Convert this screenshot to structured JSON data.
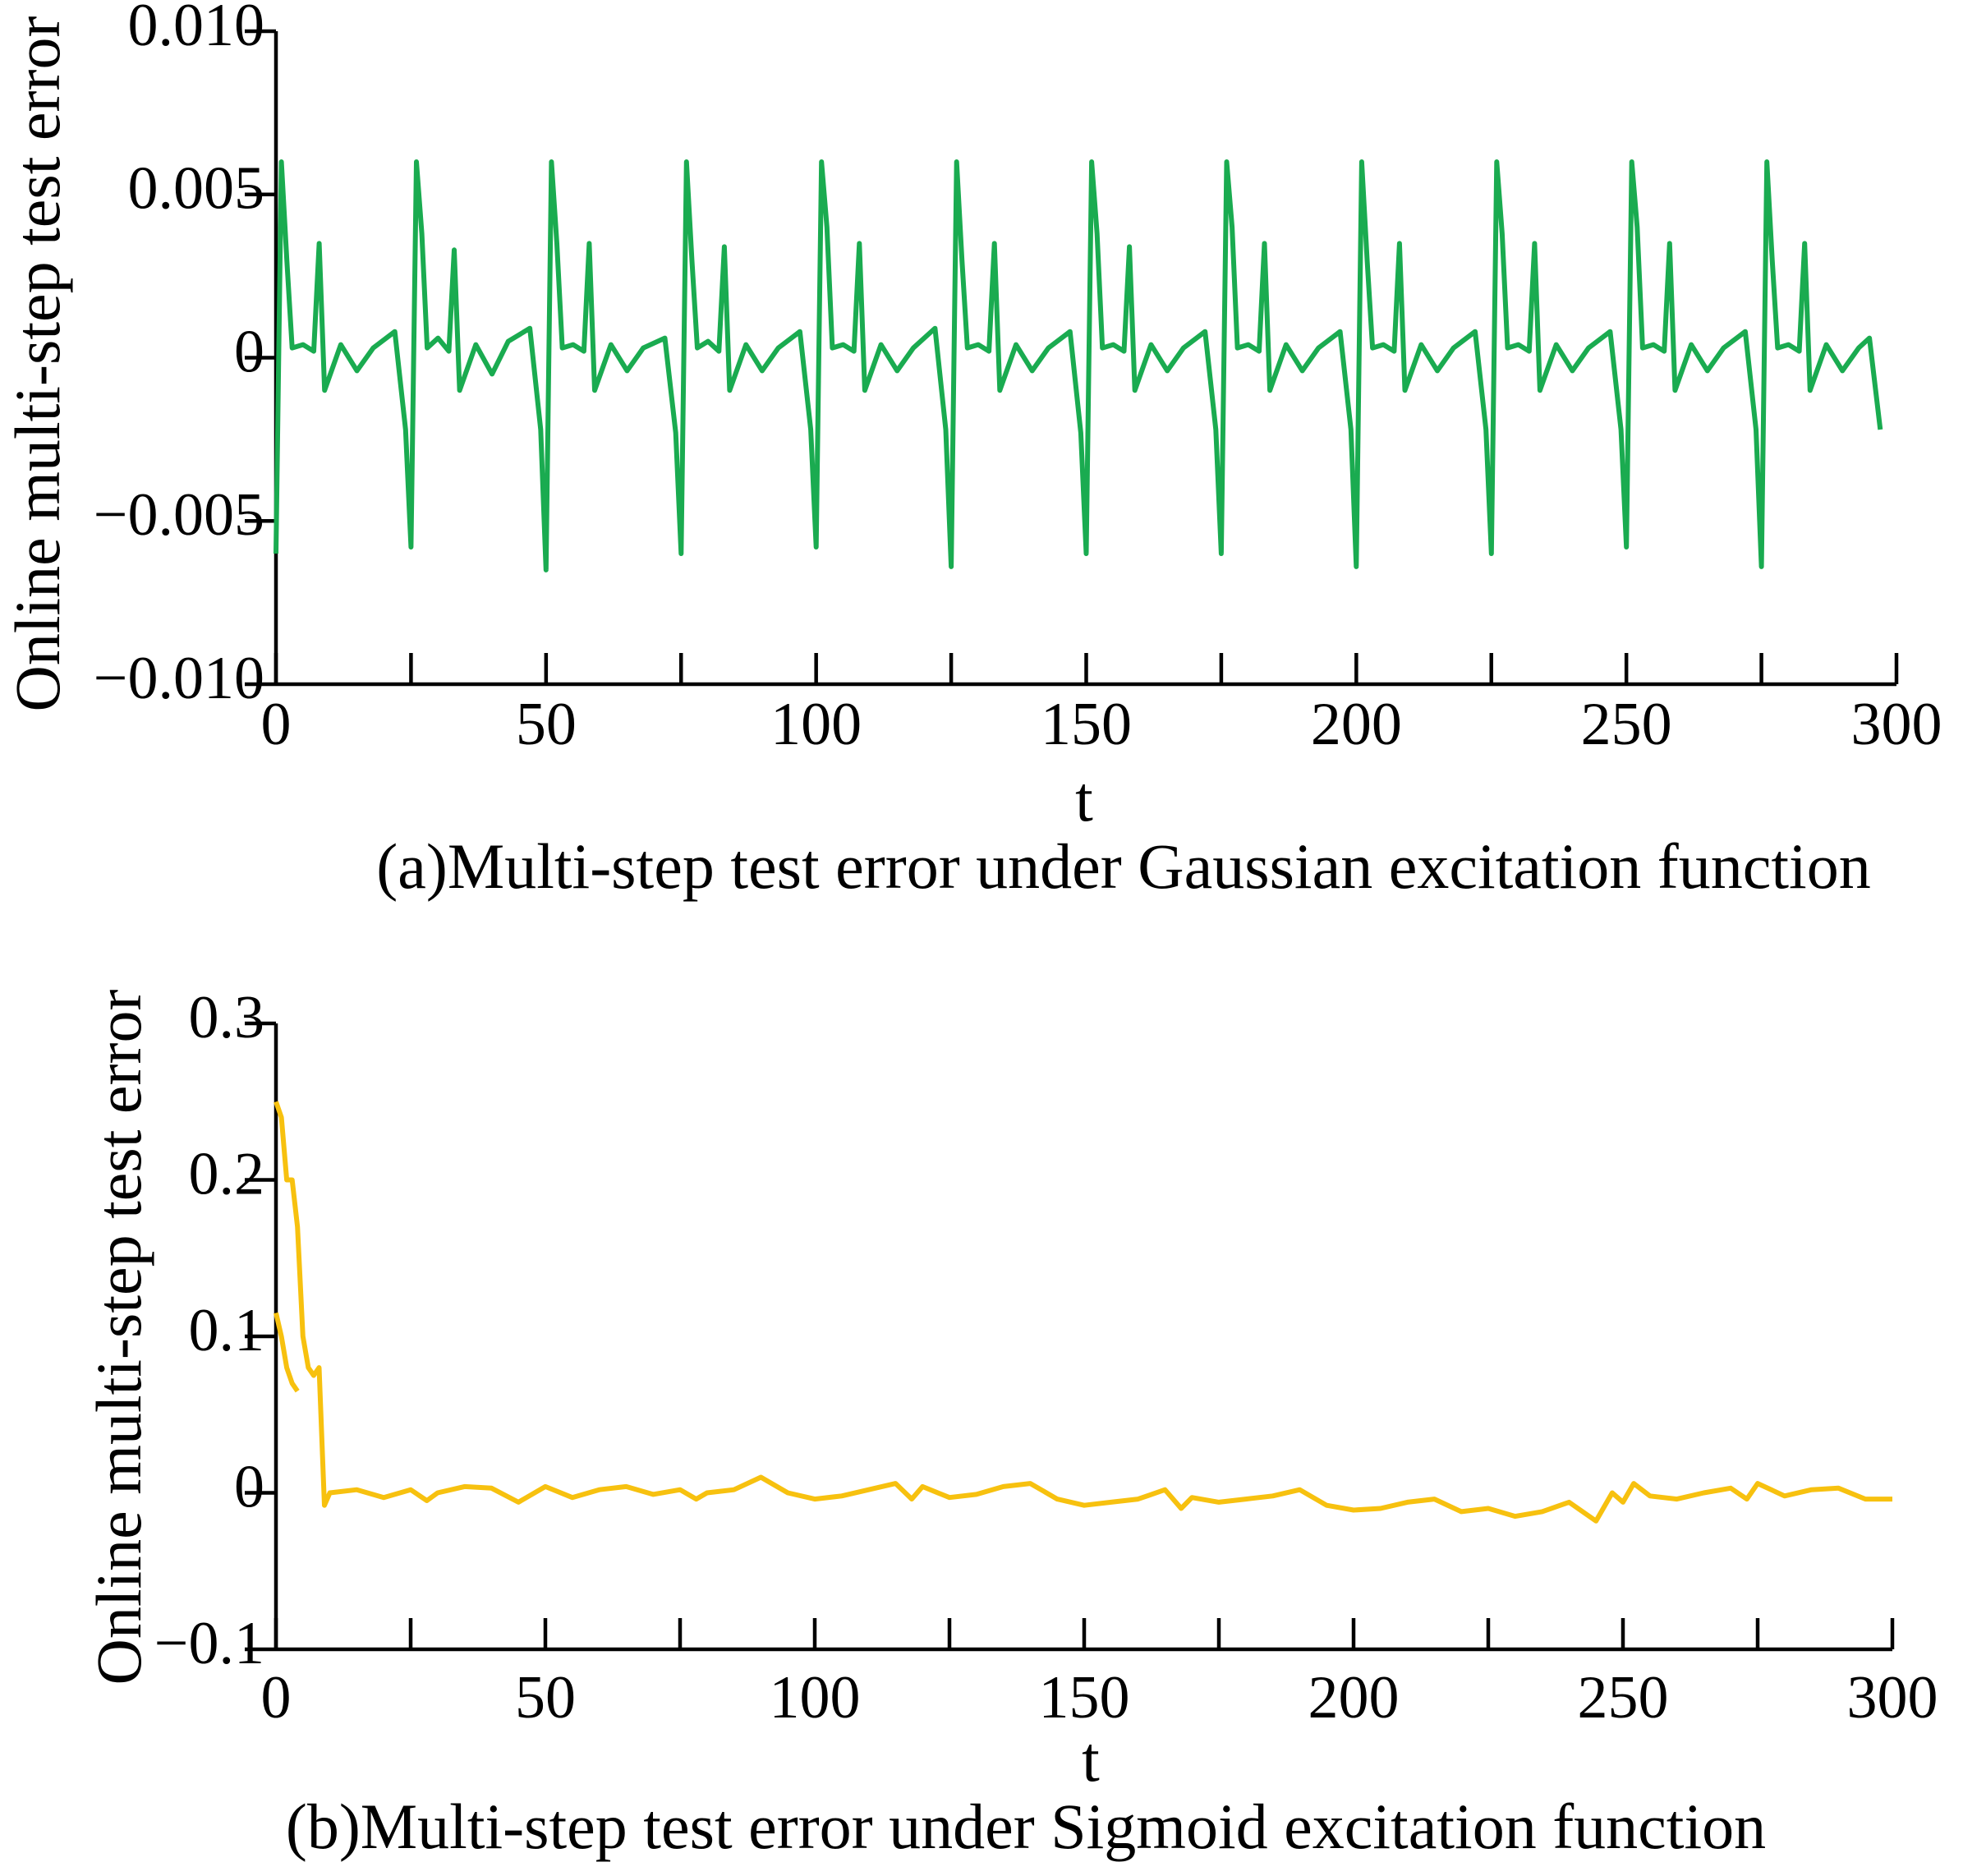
{
  "chart_data": [
    {
      "type": "line",
      "ylabel": "Online multi-step test error",
      "xlabel": "t",
      "caption": "(a)Multi-step test error under Gaussian excitation function",
      "xlim": [
        0,
        300
      ],
      "xticks": [
        0,
        50,
        100,
        150,
        200,
        250,
        300
      ],
      "xticks_minor": [
        25,
        75,
        125,
        175,
        225,
        275
      ],
      "ylim": [
        -0.01,
        0.01
      ],
      "yticks": [
        {
          "value": 0.01,
          "label": "0.010"
        },
        {
          "value": 0.005,
          "label": "0.005"
        },
        0,
        {
          "value": -0.005,
          "label": "−0.005"
        },
        {
          "value": -0.01,
          "label": "−0.010"
        }
      ],
      "series": [
        {
          "color": "#1aab50",
          "x": [
            0,
            1,
            2,
            3,
            5,
            7,
            8,
            9,
            12,
            15,
            18,
            22,
            24,
            25,
            26,
            27,
            28,
            30,
            32,
            33,
            34,
            37,
            40,
            43,
            47,
            49,
            50,
            51,
            52,
            53,
            55,
            57,
            58,
            59,
            62,
            65,
            68,
            72,
            74,
            75,
            76,
            77,
            78,
            80,
            82,
            83,
            84,
            87,
            90,
            93,
            97,
            99,
            100,
            101,
            102,
            103,
            105,
            107,
            108,
            109,
            112,
            115,
            118,
            122,
            124,
            125,
            126,
            127,
            128,
            130,
            132,
            133,
            134,
            137,
            140,
            143,
            147,
            149,
            150,
            151,
            152,
            153,
            155,
            157,
            158,
            159,
            162,
            165,
            168,
            172,
            174,
            175,
            176,
            177,
            178,
            180,
            182,
            183,
            184,
            187,
            190,
            193,
            197,
            199,
            200,
            201,
            202,
            203,
            205,
            207,
            208,
            209,
            212,
            215,
            218,
            222,
            224,
            225,
            226,
            227,
            228,
            230,
            232,
            233,
            234,
            237,
            240,
            243,
            247,
            249,
            250,
            251,
            252,
            253,
            255,
            257,
            258,
            259,
            262,
            265,
            268,
            272,
            274,
            275,
            276,
            277,
            278,
            280,
            282,
            283,
            284,
            287,
            290,
            293,
            295,
            297
          ],
          "values": [
            -0.006,
            0.006,
            0.003,
            0.0003,
            0.0004,
            0.0002,
            0.0035,
            -0.001,
            0.0004,
            -0.0004,
            0.0003,
            0.0008,
            -0.0022,
            -0.0058,
            0.006,
            0.0038,
            0.0003,
            0.0006,
            0.0002,
            0.0033,
            -0.001,
            0.0004,
            -0.0005,
            0.0005,
            0.0009,
            -0.0022,
            -0.0065,
            0.006,
            0.0035,
            0.0003,
            0.0004,
            0.0002,
            0.0035,
            -0.001,
            0.0004,
            -0.0004,
            0.0003,
            0.0006,
            -0.0023,
            -0.006,
            0.006,
            0.003,
            0.0003,
            0.0005,
            0.0002,
            0.0034,
            -0.001,
            0.0004,
            -0.0004,
            0.0003,
            0.0008,
            -0.0022,
            -0.0058,
            0.006,
            0.004,
            0.0003,
            0.0004,
            0.0002,
            0.0035,
            -0.001,
            0.0004,
            -0.0004,
            0.0003,
            0.0009,
            -0.0022,
            -0.0064,
            0.006,
            0.003,
            0.0003,
            0.0004,
            0.0002,
            0.0035,
            -0.001,
            0.0004,
            -0.0004,
            0.0003,
            0.0008,
            -0.0023,
            -0.006,
            0.006,
            0.0038,
            0.0003,
            0.0004,
            0.0002,
            0.0034,
            -0.001,
            0.0004,
            -0.0004,
            0.0003,
            0.0008,
            -0.0022,
            -0.006,
            0.006,
            0.004,
            0.0003,
            0.0004,
            0.0002,
            0.0035,
            -0.001,
            0.0004,
            -0.0004,
            0.0003,
            0.0008,
            -0.0022,
            -0.0064,
            0.006,
            0.003,
            0.0003,
            0.0004,
            0.0002,
            0.0035,
            -0.001,
            0.0004,
            -0.0004,
            0.0003,
            0.0008,
            -0.0022,
            -0.006,
            0.006,
            0.0038,
            0.0003,
            0.0004,
            0.0002,
            0.0035,
            -0.001,
            0.0004,
            -0.0004,
            0.0003,
            0.0008,
            -0.0022,
            -0.0058,
            0.006,
            0.004,
            0.0003,
            0.0004,
            0.0002,
            0.0035,
            -0.001,
            0.0004,
            -0.0004,
            0.0003,
            0.0008,
            -0.0022,
            -0.0064,
            0.006,
            0.003,
            0.0003,
            0.0004,
            0.0002,
            0.0035,
            -0.001,
            0.0004,
            -0.0004,
            0.0003,
            0.0006,
            -0.0022
          ]
        }
      ]
    },
    {
      "type": "line",
      "ylabel": "Online multi-step test error",
      "xlabel": "t",
      "caption": "(b)Multi-step test error under Sigmoid excitation function",
      "xlim": [
        0,
        300
      ],
      "xticks": [
        0,
        50,
        100,
        150,
        200,
        250,
        300
      ],
      "xticks_minor": [
        25,
        75,
        125,
        175,
        225,
        275
      ],
      "ylim": [
        -0.1,
        0.3
      ],
      "yticks": [
        0.3,
        0.2,
        0.1,
        0,
        {
          "value": -0.1,
          "label": "−0.1"
        }
      ],
      "series": [
        {
          "color": "#f7c10f",
          "x": [
            0,
            1,
            2,
            3,
            4,
            4,
            0,
            1,
            2,
            3,
            4,
            5,
            6,
            7,
            8,
            9,
            10,
            15,
            20,
            25,
            28,
            30,
            35,
            40,
            45,
            50,
            55,
            60,
            65,
            70,
            75,
            78,
            80,
            85,
            90,
            95,
            100,
            105,
            110,
            115,
            118,
            120,
            125,
            130,
            135,
            140,
            145,
            150,
            155,
            160,
            165,
            168,
            170,
            175,
            180,
            185,
            190,
            195,
            200,
            205,
            210,
            215,
            220,
            225,
            230,
            235,
            240,
            245,
            248,
            250,
            252,
            255,
            260,
            265,
            270,
            273,
            275,
            280,
            285,
            290,
            295,
            300
          ],
          "values": [
            0.115,
            0.1,
            0.08,
            0.07,
            0.065,
            null,
            0.25,
            0.24,
            0.2,
            0.2,
            0.17,
            0.1,
            0.08,
            0.075,
            0.08,
            -0.008,
            0,
            0.002,
            -0.003,
            0.002,
            -0.005,
            0,
            0.004,
            0.003,
            -0.006,
            0.004,
            -0.003,
            0.002,
            0.004,
            -0.001,
            0.002,
            -0.004,
            0,
            0.002,
            0.01,
            0,
            -0.004,
            -0.002,
            0.002,
            0.006,
            -0.004,
            0.004,
            -0.003,
            -0.001,
            0.004,
            0.006,
            -0.004,
            -0.008,
            -0.006,
            -0.004,
            0.002,
            -0.01,
            -0.003,
            -0.006,
            -0.004,
            -0.002,
            0.002,
            -0.008,
            -0.011,
            -0.01,
            -0.006,
            -0.004,
            -0.012,
            -0.01,
            -0.015,
            -0.012,
            -0.006,
            -0.018,
            0,
            -0.006,
            0.006,
            -0.002,
            -0.004,
            0,
            0.003,
            -0.004,
            0.006,
            -0.002,
            0.002,
            0.003,
            -0.004,
            -0.004
          ]
        }
      ]
    }
  ]
}
